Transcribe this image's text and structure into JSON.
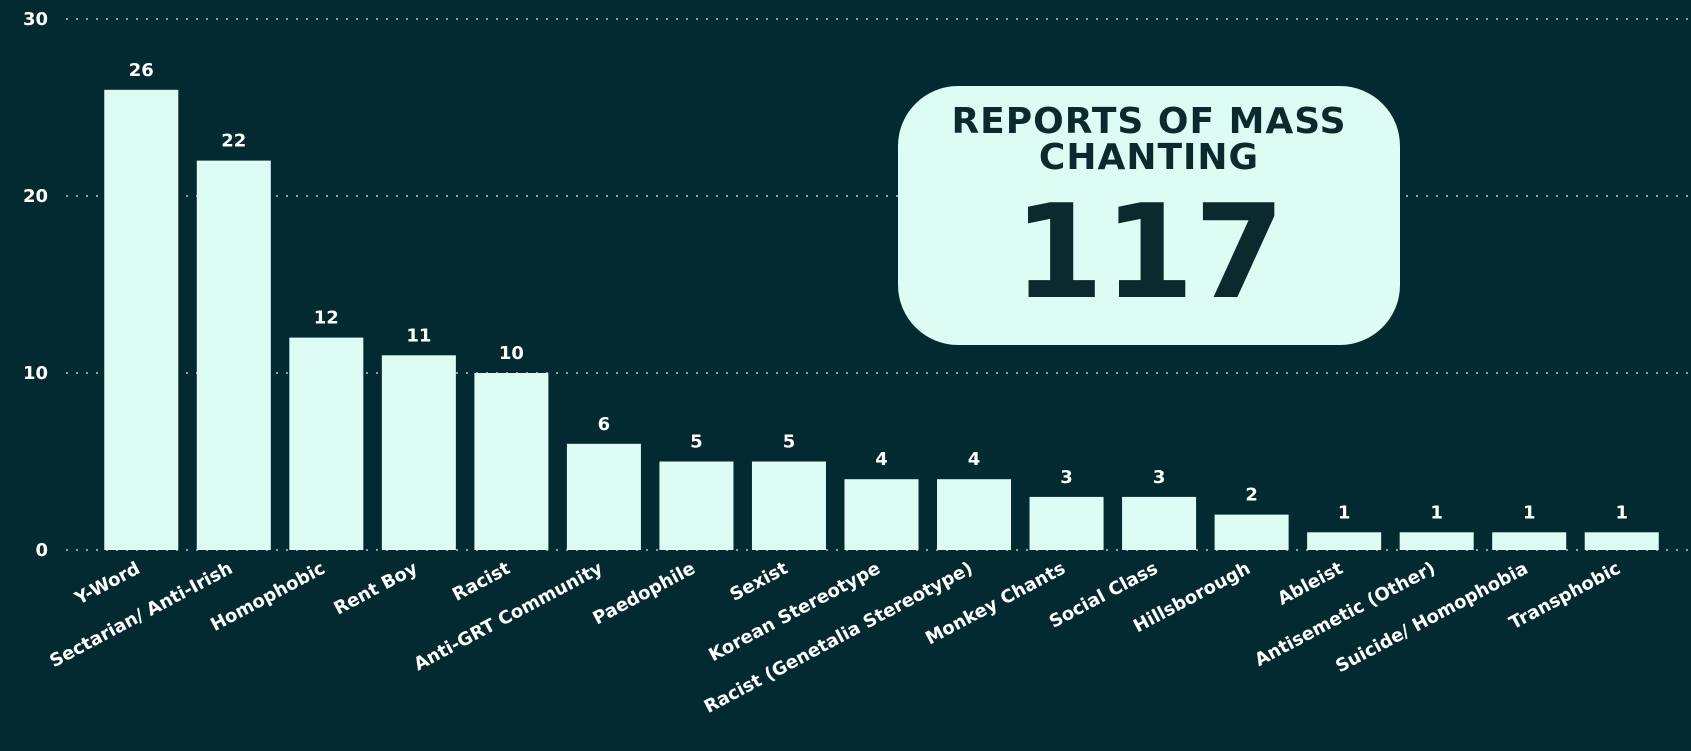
{
  "chart_data": {
    "type": "bar",
    "categories": [
      "Y-Word",
      "Sectarian/ Anti-Irish",
      "Homophobic",
      "Rent Boy",
      "Racist",
      "Anti-GRT Community",
      "Paedophile",
      "Sexist",
      "Korean Stereotype",
      "Racist (Genetalia Stereotype)",
      "Monkey Chants",
      "Social Class",
      "Hillsborough",
      "Ableist",
      "Antisemetic (Other)",
      "Suicide/ Homophobia",
      "Transphobic"
    ],
    "values": [
      26,
      22,
      12,
      11,
      10,
      6,
      5,
      5,
      4,
      4,
      3,
      3,
      2,
      1,
      1,
      1,
      1
    ],
    "color": "#dcfcf4",
    "ylim": [
      0,
      30
    ],
    "yticks": [
      0,
      10,
      20,
      30
    ],
    "grid": true,
    "annotation": {
      "title": "REPORTS OF MASS CHANTING",
      "value": 117
    }
  }
}
